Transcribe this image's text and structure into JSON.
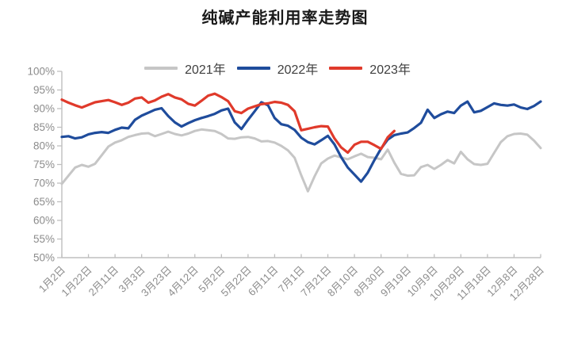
{
  "title": "纯碱产能利用率走势图",
  "chart_data": {
    "type": "line",
    "title": "纯碱产能利用率走势图",
    "xlabel": "",
    "ylabel": "",
    "ylim": [
      50,
      100
    ],
    "y_tick_step": 5,
    "y_tick_labels": [
      "100%",
      "95%",
      "90%",
      "85%",
      "80%",
      "75%",
      "70%",
      "65%",
      "60%",
      "55%",
      "50%"
    ],
    "x_tick_labels": [
      "1月2日",
      "1月22日",
      "2月11日",
      "3月3日",
      "3月23日",
      "4月12日",
      "5月2日",
      "5月22日",
      "6月11日",
      "7月1日",
      "7月21日",
      "8月10日",
      "8月30日",
      "9月19日",
      "10月9日",
      "10月29日",
      "11月18日",
      "12月8日",
      "12月28日"
    ],
    "x_interval_days": 5,
    "points_per_year": 73,
    "grid": false,
    "legend_position": "top",
    "axis_color": "#bfbfbf",
    "tick_label_color": "#8c8c8c",
    "series": [
      {
        "name": "2021年",
        "color": "#c6c6c6",
        "stroke_width": 3.0,
        "values": [
          69.8,
          72.0,
          74.2,
          74.9,
          74.4,
          75.2,
          77.5,
          79.8,
          80.9,
          81.5,
          82.4,
          82.9,
          83.3,
          83.4,
          82.6,
          83.2,
          83.8,
          83.2,
          82.8,
          83.3,
          84.0,
          84.4,
          84.2,
          84.0,
          83.2,
          82.0,
          81.9,
          82.3,
          82.4,
          82.0,
          81.2,
          81.3,
          80.9,
          80.0,
          78.8,
          76.8,
          72.1,
          67.8,
          71.8,
          75.3,
          76.6,
          77.4,
          76.9,
          76.4,
          77.2,
          77.9,
          77.0,
          76.8,
          76.4,
          79.0,
          75.5,
          72.5,
          72.0,
          72.1,
          74.3,
          74.9,
          73.8,
          74.9,
          76.2,
          75.3,
          78.4,
          76.4,
          75.1,
          74.9,
          75.2,
          78.1,
          81.0,
          82.6,
          83.2,
          83.3,
          83.0,
          81.4,
          79.4
        ]
      },
      {
        "name": "2022年",
        "color": "#1f4c9c",
        "stroke_width": 3.2,
        "values": [
          82.4,
          82.6,
          82.0,
          82.3,
          83.1,
          83.5,
          83.7,
          83.5,
          84.3,
          84.9,
          84.7,
          87.0,
          88.1,
          88.9,
          89.7,
          90.1,
          88.0,
          86.3,
          85.2,
          86.1,
          86.9,
          87.5,
          88.0,
          88.6,
          89.5,
          90.0,
          86.3,
          84.5,
          87.0,
          89.3,
          91.7,
          90.9,
          87.5,
          85.8,
          85.4,
          84.3,
          82.2,
          81.0,
          80.4,
          81.5,
          82.7,
          80.4,
          77.0,
          74.2,
          72.3,
          70.4,
          72.8,
          76.2,
          79.3,
          81.7,
          82.9,
          83.3,
          83.6,
          84.8,
          86.2,
          89.7,
          87.5,
          88.5,
          89.2,
          88.8,
          90.8,
          91.9,
          89.0,
          89.4,
          90.4,
          91.4,
          91.0,
          90.8,
          91.1,
          90.3,
          89.9,
          90.7,
          91.9
        ]
      },
      {
        "name": "2023年",
        "color": "#e03a2b",
        "stroke_width": 3.2,
        "values": [
          92.4,
          91.6,
          90.9,
          90.3,
          91.0,
          91.7,
          92.0,
          92.3,
          91.7,
          91.0,
          91.6,
          92.7,
          93.0,
          91.6,
          92.2,
          93.2,
          93.9,
          93.0,
          92.5,
          91.3,
          90.8,
          92.1,
          93.5,
          94.0,
          93.1,
          92.0,
          89.3,
          88.8,
          90.0,
          90.6,
          91.2,
          91.4,
          91.8,
          91.6,
          91.0,
          89.3,
          84.2,
          84.6,
          85.0,
          85.3,
          85.2,
          82.0,
          79.6,
          78.2,
          80.3,
          81.1,
          81.1,
          80.2,
          79.2,
          82.3,
          84.0
        ]
      }
    ]
  }
}
